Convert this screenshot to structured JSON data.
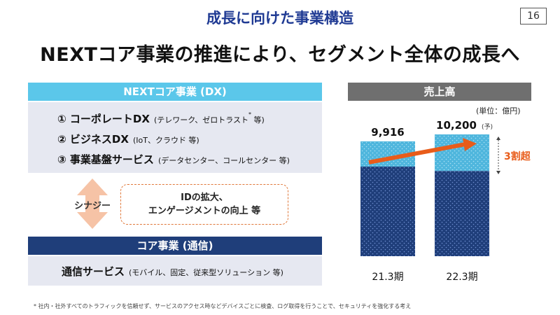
{
  "header": {
    "subtitle": "成長に向けた事業構造",
    "title": "NEXTコア事業の推進により、セグメント全体の成長へ",
    "page_number": "16"
  },
  "dx_section": {
    "header": "NEXTコア事業 (DX)",
    "items": [
      {
        "label": "① コーポレートDX",
        "detail": "(テレワーク、ゼロトラスト",
        "detail_mark": "*",
        "detail_end": " 等)"
      },
      {
        "label": "② ビジネスDX",
        "detail": "(IoT、クラウド 等)"
      },
      {
        "label": "③ 事業基盤サービス",
        "detail": "(データセンター、コールセンター 等)"
      }
    ]
  },
  "synergy": {
    "label": "シナジー",
    "line1": "IDの拡大、",
    "line2": "エンゲージメントの向上 等"
  },
  "core_section": {
    "header": "コア事業 (通信)",
    "item_label": "通信サービス",
    "item_detail": "(モバイル、固定、従来型ソリューション 等)"
  },
  "chart_panel": {
    "header": "売上高",
    "unit": "(単位：億円)",
    "growth_label": "3割超",
    "forecast_mark": "(予)"
  },
  "chart_data": {
    "type": "bar",
    "title": "売上高",
    "unit": "億円",
    "categories": [
      "21.3期",
      "22.3期"
    ],
    "values": [
      9916,
      10200
    ],
    "value_labels": [
      "9,916",
      "10,200"
    ],
    "forecast": [
      false,
      true
    ],
    "stack_segments": [
      "コア事業 (通信)",
      "NEXTコア事業 (DX)"
    ],
    "annotation": "3割超",
    "colors": {
      "dx": "#4fb6dd",
      "core": "#1f3e7a",
      "arrow": "#e85c1a"
    }
  },
  "footnote": "* 社内・社外すべてのトラフィックを信頼せず、サービスのアクセス時などデバイスごとに検査、ログ取得を行うことで、セキュリティを強化する考え"
}
